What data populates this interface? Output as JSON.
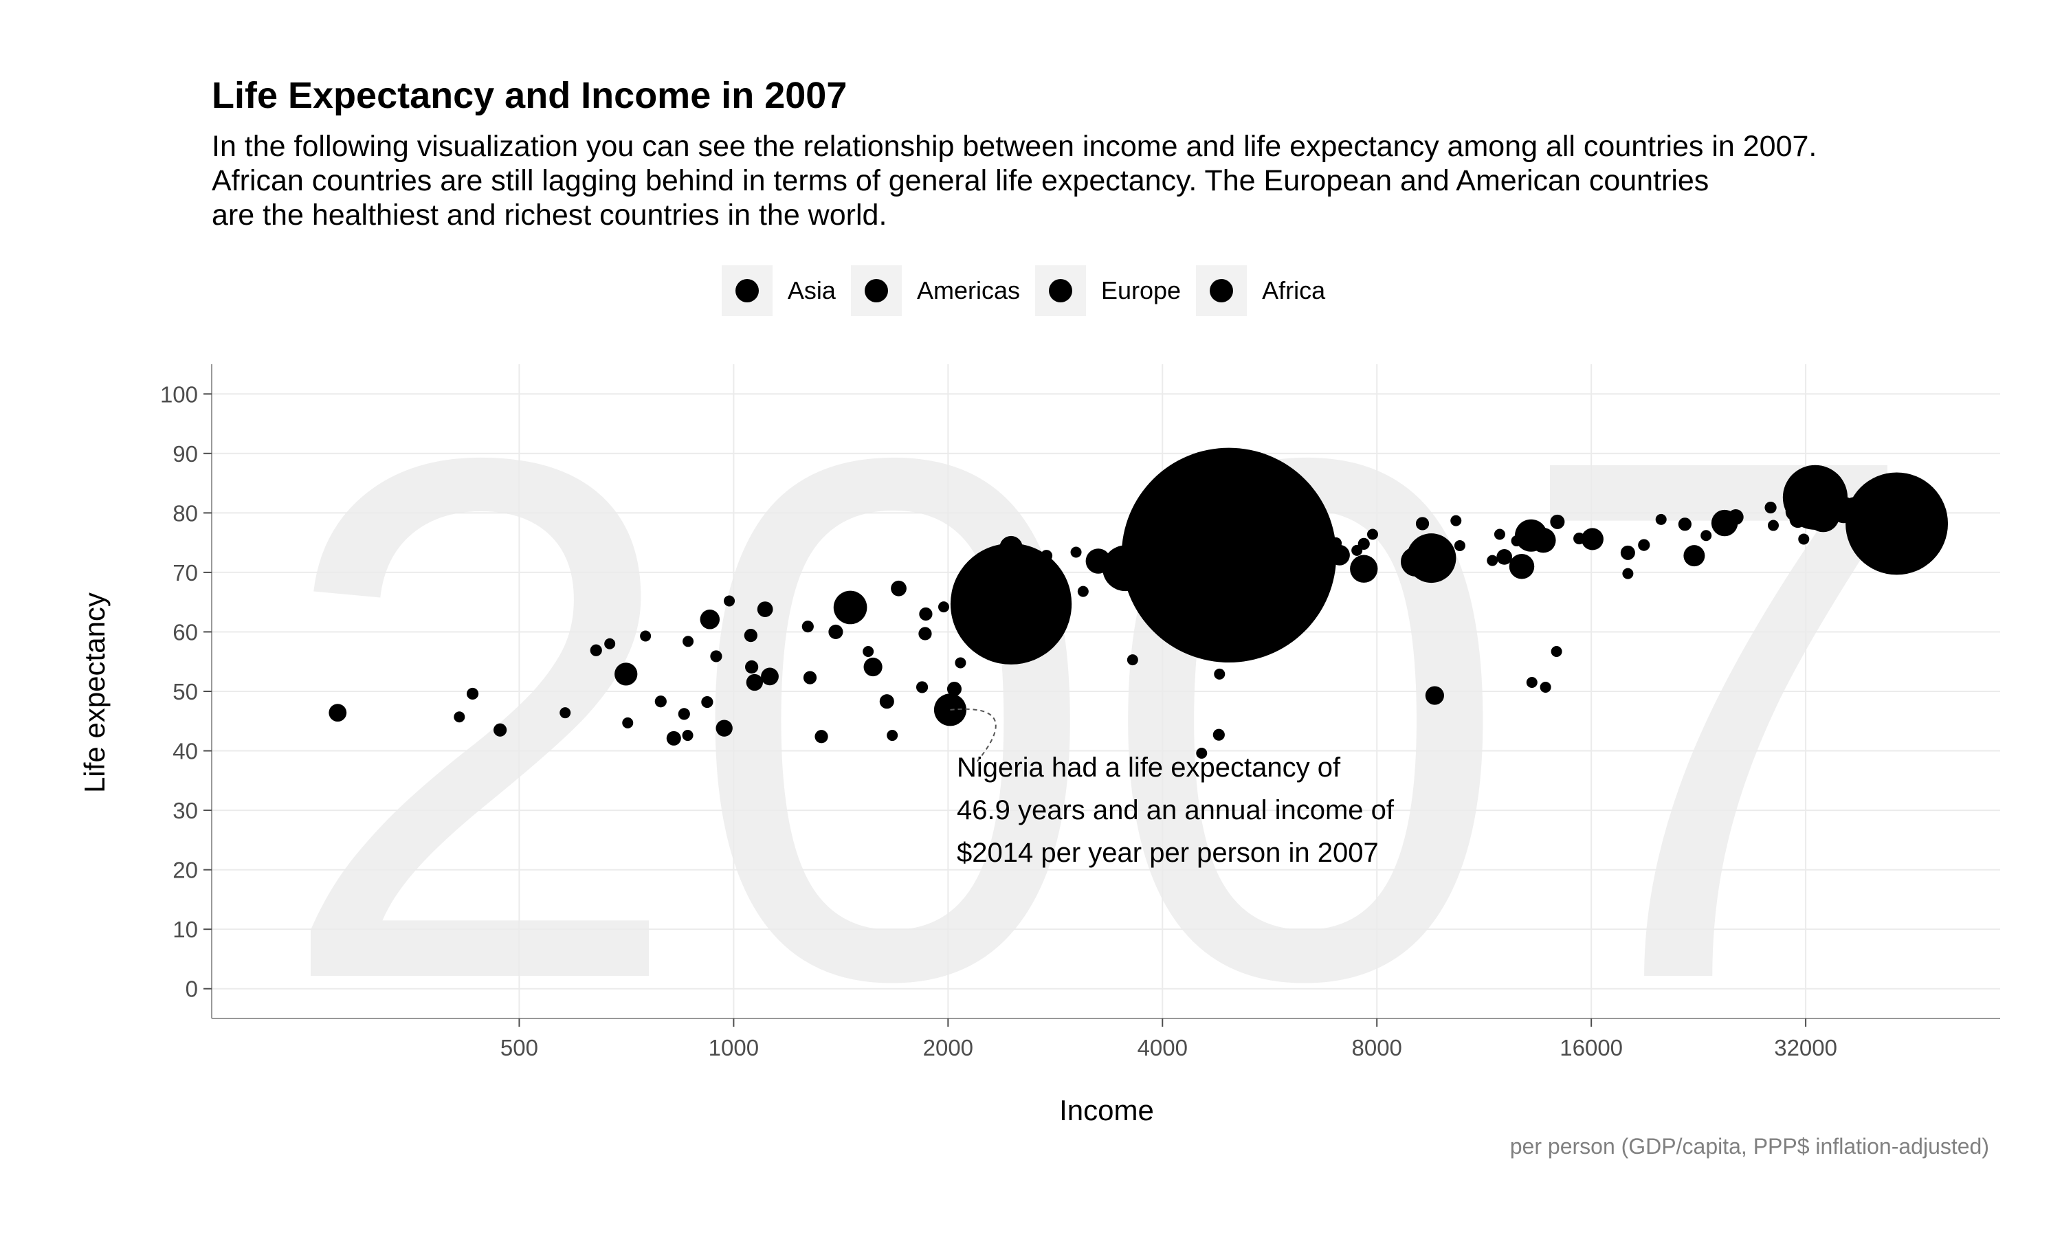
{
  "header": {
    "title": "Life Expectancy and Income in 2007",
    "subtitle": "In the following visualization you can see the relationship between income and life expectancy among all countries in 2007.\nAfrican countries are still lagging behind in terms of general life expectancy. The European and American countries\nare the healthiest and richest countries in the world."
  },
  "legend": {
    "items": [
      {
        "label": "Asia",
        "color": "#000000"
      },
      {
        "label": "Americas",
        "color": "#000000"
      },
      {
        "label": "Europe",
        "color": "#000000"
      },
      {
        "label": "Africa",
        "color": "#000000"
      }
    ]
  },
  "caption": "per person (GDP/capita, PPP$ inflation-adjusted)",
  "annotation": {
    "lines": [
      "Nigeria had a life expectancy of",
      "46.9 years and an annual income of",
      "$2014 per year per person in 2007"
    ],
    "target_income": 2014,
    "target_life": 46.9
  },
  "colors": {
    "points": "#000000",
    "grid": "#ebebeb",
    "axis": "#999999",
    "watermark": "#efefef",
    "tick_text": "#4d4d4d",
    "caption": "#808080"
  },
  "chart_data": {
    "type": "scatter",
    "title": "Life Expectancy and Income in 2007",
    "xlabel": "Income",
    "ylabel": "Life expectancy",
    "x_scale": "log2",
    "xlim": [
      185,
      60000
    ],
    "ylim": [
      -5,
      105
    ],
    "x_ticks": [
      500,
      1000,
      2000,
      4000,
      8000,
      16000,
      32000
    ],
    "y_ticks": [
      0,
      10,
      20,
      30,
      40,
      50,
      60,
      70,
      80,
      90,
      100
    ],
    "grid": true,
    "legend_position": "top-center",
    "watermark": "2007",
    "points": [
      {
        "x": 278,
        "y": 46.4,
        "pop": 9
      },
      {
        "x": 430,
        "y": 49.6,
        "pop": 4
      },
      {
        "x": 470,
        "y": 43.5,
        "pop": 5
      },
      {
        "x": 412,
        "y": 45.7,
        "pop": 2
      },
      {
        "x": 580,
        "y": 46.4,
        "pop": 1
      },
      {
        "x": 641,
        "y": 56.9,
        "pop": 4
      },
      {
        "x": 670,
        "y": 58.0,
        "pop": 3
      },
      {
        "x": 706,
        "y": 52.9,
        "pop": 15
      },
      {
        "x": 752,
        "y": 59.3,
        "pop": 1
      },
      {
        "x": 710,
        "y": 44.7,
        "pop": 2
      },
      {
        "x": 790,
        "y": 48.3,
        "pop": 4
      },
      {
        "x": 863,
        "y": 58.4,
        "pop": 3
      },
      {
        "x": 824,
        "y": 42.1,
        "pop": 6
      },
      {
        "x": 862,
        "y": 42.6,
        "pop": 3
      },
      {
        "x": 852,
        "y": 46.2,
        "pop": 4
      },
      {
        "x": 926,
        "y": 62.1,
        "pop": 11
      },
      {
        "x": 945,
        "y": 55.9,
        "pop": 4
      },
      {
        "x": 918,
        "y": 48.2,
        "pop": 4
      },
      {
        "x": 986,
        "y": 65.2,
        "pop": 1
      },
      {
        "x": 970,
        "y": 43.8,
        "pop": 8
      },
      {
        "x": 1057,
        "y": 59.4,
        "pop": 5
      },
      {
        "x": 1060,
        "y": 54.1,
        "pop": 5
      },
      {
        "x": 1107,
        "y": 63.8,
        "pop": 7
      },
      {
        "x": 1070,
        "y": 51.5,
        "pop": 8
      },
      {
        "x": 1124,
        "y": 52.5,
        "pop": 9
      },
      {
        "x": 1271,
        "y": 60.9,
        "pop": 4
      },
      {
        "x": 1280,
        "y": 52.3,
        "pop": 5
      },
      {
        "x": 1328,
        "y": 42.4,
        "pop": 5
      },
      {
        "x": 1391,
        "y": 60.0,
        "pop": 6
      },
      {
        "x": 1458,
        "y": 64.1,
        "pop": 32
      },
      {
        "x": 1545,
        "y": 56.7,
        "pop": 3
      },
      {
        "x": 1569,
        "y": 54.1,
        "pop": 10
      },
      {
        "x": 1641,
        "y": 48.3,
        "pop": 6
      },
      {
        "x": 1670,
        "y": 42.6,
        "pop": 2
      },
      {
        "x": 1705,
        "y": 67.3,
        "pop": 7
      },
      {
        "x": 1861,
        "y": 63.0,
        "pop": 5
      },
      {
        "x": 1857,
        "y": 59.7,
        "pop": 5
      },
      {
        "x": 1839,
        "y": 50.7,
        "pop": 4
      },
      {
        "x": 1972,
        "y": 64.2,
        "pop": 2
      },
      {
        "x": 2041,
        "y": 50.4,
        "pop": 6
      },
      {
        "x": 2014,
        "y": 46.9,
        "pop": 30
      },
      {
        "x": 2082,
        "y": 54.8,
        "pop": 1
      },
      {
        "x": 2452,
        "y": 64.7,
        "pop": 420
      },
      {
        "x": 2452,
        "y": 74.2,
        "pop": 15
      },
      {
        "x": 2749,
        "y": 72.8,
        "pop": 4
      },
      {
        "x": 3095,
        "y": 66.8,
        "pop": 2
      },
      {
        "x": 3025,
        "y": 73.4,
        "pop": 3
      },
      {
        "x": 3250,
        "y": 71.9,
        "pop": 18
      },
      {
        "x": 3548,
        "y": 70.7,
        "pop": 60
      },
      {
        "x": 3632,
        "y": 55.3,
        "pop": 2
      },
      {
        "x": 3820,
        "y": 65.6,
        "pop": 3
      },
      {
        "x": 3970,
        "y": 72.2,
        "pop": 5
      },
      {
        "x": 4513,
        "y": 59.4,
        "pop": 8
      },
      {
        "x": 4540,
        "y": 39.6,
        "pop": 2
      },
      {
        "x": 4800,
        "y": 42.7,
        "pop": 4
      },
      {
        "x": 4810,
        "y": 52.9,
        "pop": 2
      },
      {
        "x": 4959,
        "y": 72.9,
        "pop": 1320
      },
      {
        "x": 6025,
        "y": 76.4,
        "pop": 2
      },
      {
        "x": 6223,
        "y": 72.3,
        "pop": 9
      },
      {
        "x": 7006,
        "y": 74.9,
        "pop": 4
      },
      {
        "x": 7092,
        "y": 72.9,
        "pop": 12
      },
      {
        "x": 7500,
        "y": 73.7,
        "pop": 2
      },
      {
        "x": 7670,
        "y": 74.8,
        "pop": 4
      },
      {
        "x": 7670,
        "y": 70.6,
        "pop": 22
      },
      {
        "x": 7890,
        "y": 76.4,
        "pop": 2
      },
      {
        "x": 9065,
        "y": 71.8,
        "pop": 25
      },
      {
        "x": 9270,
        "y": 78.2,
        "pop": 5
      },
      {
        "x": 9540,
        "y": 72.4,
        "pop": 70
      },
      {
        "x": 9786,
        "y": 75.1,
        "pop": 4
      },
      {
        "x": 9645,
        "y": 49.3,
        "pop": 10
      },
      {
        "x": 10330,
        "y": 78.7,
        "pop": 3
      },
      {
        "x": 10460,
        "y": 74.5,
        "pop": 3
      },
      {
        "x": 11620,
        "y": 72.0,
        "pop": 3
      },
      {
        "x": 11900,
        "y": 76.4,
        "pop": 2
      },
      {
        "x": 12080,
        "y": 72.6,
        "pop": 7
      },
      {
        "x": 12570,
        "y": 75.3,
        "pop": 2
      },
      {
        "x": 12779,
        "y": 71.0,
        "pop": 18
      },
      {
        "x": 13170,
        "y": 76.2,
        "pop": 30
      },
      {
        "x": 13206,
        "y": 51.5,
        "pop": 1
      },
      {
        "x": 13700,
        "y": 75.4,
        "pop": 18
      },
      {
        "x": 13800,
        "y": 50.7,
        "pop": 2
      },
      {
        "x": 14340,
        "y": 78.5,
        "pop": 6
      },
      {
        "x": 14300,
        "y": 56.7,
        "pop": 1
      },
      {
        "x": 15390,
        "y": 75.7,
        "pop": 4
      },
      {
        "x": 16060,
        "y": 75.6,
        "pop": 14
      },
      {
        "x": 18009,
        "y": 69.8,
        "pop": 1
      },
      {
        "x": 18008,
        "y": 73.3,
        "pop": 6
      },
      {
        "x": 18970,
        "y": 74.6,
        "pop": 4
      },
      {
        "x": 20050,
        "y": 78.9,
        "pop": 3
      },
      {
        "x": 21655,
        "y": 78.1,
        "pop": 5
      },
      {
        "x": 22316,
        "y": 72.8,
        "pop": 13
      },
      {
        "x": 23190,
        "y": 76.2,
        "pop": 3
      },
      {
        "x": 24620,
        "y": 78.3,
        "pop": 20
      },
      {
        "x": 25523,
        "y": 79.3,
        "pop": 7
      },
      {
        "x": 28570,
        "y": 80.9,
        "pop": 4
      },
      {
        "x": 28820,
        "y": 77.9,
        "pop": 2
      },
      {
        "x": 30900,
        "y": 80.2,
        "pop": 10
      },
      {
        "x": 31200,
        "y": 78.9,
        "pop": 8
      },
      {
        "x": 31800,
        "y": 75.6,
        "pop": 1
      },
      {
        "x": 33203,
        "y": 80.6,
        "pop": 33
      },
      {
        "x": 33860,
        "y": 79.5,
        "pop": 30
      },
      {
        "x": 34440,
        "y": 81.5,
        "pop": 10
      },
      {
        "x": 35278,
        "y": 80.1,
        "pop": 8
      },
      {
        "x": 36180,
        "y": 80.5,
        "pop": 20
      },
      {
        "x": 37506,
        "y": 80.7,
        "pop": 16
      },
      {
        "x": 38600,
        "y": 78.5,
        "pop": 3
      },
      {
        "x": 39724,
        "y": 80.2,
        "pop": 8
      },
      {
        "x": 40676,
        "y": 81.7,
        "pop": 2
      },
      {
        "x": 42952,
        "y": 78.2,
        "pop": 1
      },
      {
        "x": 44000,
        "y": 82.2,
        "pop": 3
      },
      {
        "x": 46000,
        "y": 80.5,
        "pop": 3
      },
      {
        "x": 47143,
        "y": 80.6,
        "pop": 4
      },
      {
        "x": 42951,
        "y": 78.2,
        "pop": 300
      },
      {
        "x": 49357,
        "y": 80.2,
        "pop": 5
      },
      {
        "x": 48500,
        "y": 77.6,
        "pop": 2
      },
      {
        "x": 33000,
        "y": 82.6,
        "pop": 120
      }
    ]
  }
}
